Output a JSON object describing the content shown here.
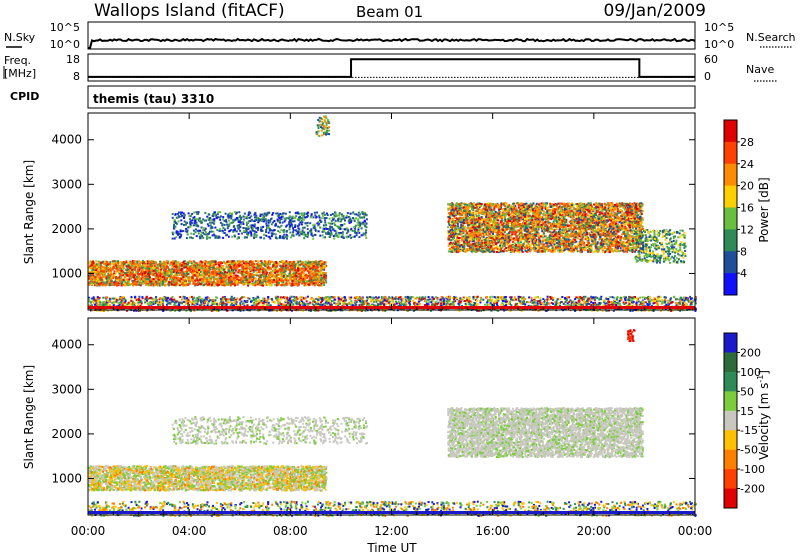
{
  "header": {
    "station": "Wallops Island (fitACF)",
    "beam": "Beam 01",
    "date": "09/Jan/2009"
  },
  "noise_panel": {
    "left_label": "N.Sky",
    "left_ticks": [
      "10^5",
      "10^0"
    ],
    "right_label": "N.Search",
    "right_ticks": [
      "10^5",
      "10^0"
    ]
  },
  "freq_panel": {
    "left_label_line1": "Freq.",
    "left_label_line2": "[MHz]",
    "left_ticks": [
      "18",
      "8"
    ],
    "right_label": "Nave",
    "right_ticks": [
      "60",
      "0"
    ],
    "cpid_label": "CPID",
    "cpid_text": "themis (tau) 3310"
  },
  "power_colorbar": {
    "label": "Power [dB]",
    "ticks": [
      "28",
      "24",
      "20",
      "16",
      "12",
      "8",
      "4"
    ],
    "colors": [
      "#e00000",
      "#ff4000",
      "#ff8c00",
      "#ffd000",
      "#6abf40",
      "#2e8b57",
      "#1f4f9a",
      "#1010ff"
    ]
  },
  "velocity_colorbar": {
    "label_main": "Velocity [m s",
    "label_sup": "-1",
    "label_end": "]",
    "ticks": [
      "200",
      "100",
      "50",
      "15",
      "-15",
      "-50",
      "-100",
      "-200"
    ],
    "colors": [
      "#1a1acc",
      "#2e6b3a",
      "#2e8b57",
      "#7ccd3c",
      "#c8c8c0",
      "#ffc000",
      "#ff8000",
      "#ff4000",
      "#e00000"
    ]
  },
  "x_axis": {
    "label": "Time UT",
    "ticks": [
      "00:00",
      "04:00",
      "08:00",
      "12:00",
      "16:00",
      "20:00",
      "00:00"
    ]
  },
  "chart_data": [
    {
      "type": "heatmap",
      "title": "Power",
      "ylabel": "Slant Range [km]",
      "xlabel": "Time UT",
      "yticks": [
        1000,
        2000,
        3000,
        4000
      ],
      "ylim": [
        180,
        4600
      ],
      "xlim_hours": [
        0,
        24
      ],
      "colorbar_label": "Power [dB]",
      "colorbar_ticks": [
        4,
        8,
        12,
        16,
        20,
        24,
        28
      ],
      "echo_regions": [
        {
          "t_start": 0.0,
          "t_end": 9.4,
          "range_low": 750,
          "range_high": 1300,
          "peak_db": 26
        },
        {
          "t_start": 3.3,
          "t_end": 11.0,
          "range_low": 1800,
          "range_high": 2400,
          "peak_db": 10
        },
        {
          "t_start": 9.0,
          "t_end": 9.5,
          "range_low": 4100,
          "range_high": 4550,
          "peak_db": 14
        },
        {
          "t_start": 14.2,
          "t_end": 21.9,
          "range_low": 1500,
          "range_high": 2600,
          "peak_db": 24
        },
        {
          "t_start": 21.6,
          "t_end": 23.6,
          "range_low": 1250,
          "range_high": 2000,
          "peak_db": 12
        },
        {
          "t_start": 0.0,
          "t_end": 24.0,
          "range_low": 180,
          "range_high": 500,
          "peak_db": 14
        }
      ]
    },
    {
      "type": "heatmap",
      "title": "Velocity",
      "ylabel": "Slant Range [km]",
      "xlabel": "Time UT",
      "yticks": [
        1000,
        2000,
        3000,
        4000
      ],
      "ylim": [
        180,
        4600
      ],
      "xlim_hours": [
        0,
        24
      ],
      "colorbar_label": "Velocity [m s-1]",
      "colorbar_ticks": [
        -200,
        -100,
        -50,
        -15,
        15,
        50,
        100,
        200
      ],
      "echo_regions": [
        {
          "t_start": 0.0,
          "t_end": 9.4,
          "range_low": 750,
          "range_high": 1300,
          "velocity": "mixed -50 to 50"
        },
        {
          "t_start": 3.3,
          "t_end": 11.0,
          "range_low": 1800,
          "range_high": 2400,
          "velocity": "-15 to 15"
        },
        {
          "t_start": 14.2,
          "t_end": 21.9,
          "range_low": 1500,
          "range_high": 2600,
          "velocity": "-15 to 15"
        },
        {
          "t_start": 21.3,
          "t_end": 21.6,
          "range_low": 4100,
          "range_high": 4350,
          "velocity": "-200"
        }
      ]
    }
  ]
}
